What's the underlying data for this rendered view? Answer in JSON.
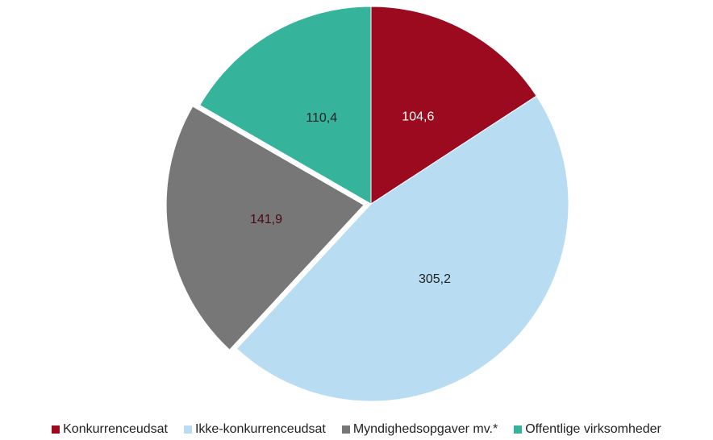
{
  "chart_data": {
    "type": "pie",
    "categories": [
      "Konkurrenceudsat",
      "Ikke-konkurrenceudsat",
      "Myndighedsopgaver mv.*",
      "Offentlige virksomheder"
    ],
    "values": [
      104.6,
      305.2,
      141.9,
      110.4
    ],
    "value_labels": [
      "104,6",
      "305,2",
      "141,9",
      "110,4"
    ],
    "colors": [
      "#9b0a1e",
      "#b8ddf3",
      "#777777",
      "#36b39b"
    ],
    "exploded_index": 2,
    "legend": "bottom"
  }
}
